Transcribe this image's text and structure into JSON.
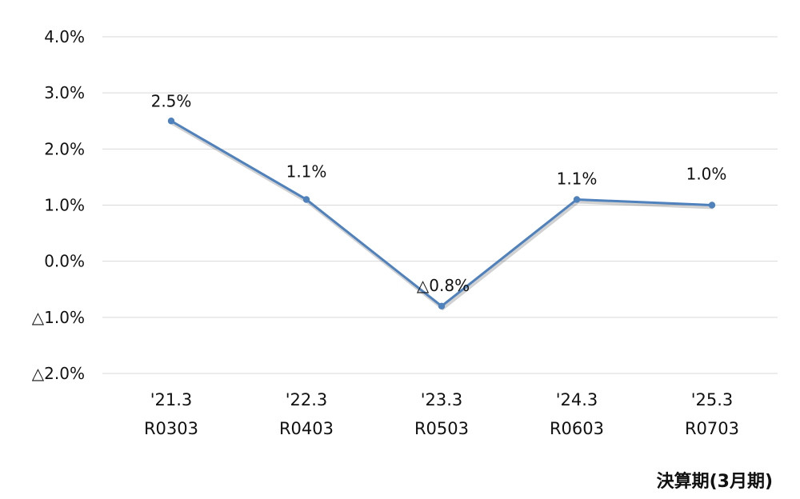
{
  "chart_data": {
    "type": "line",
    "categories": [
      [
        "'21.3",
        "R0303"
      ],
      [
        "'22.3",
        "R0403"
      ],
      [
        "'23.3",
        "R0503"
      ],
      [
        "'24.3",
        "R0603"
      ],
      [
        "'25.3",
        "R0703"
      ]
    ],
    "series": [
      {
        "values": [
          2.5,
          1.1,
          -0.8,
          1.1,
          1.0
        ],
        "data_labels": [
          "2.5%",
          "1.1%",
          "△0.8%",
          "1.1%",
          "1.0%"
        ],
        "color": "#4f81bd"
      }
    ],
    "yticks": [
      4.0,
      3.0,
      2.0,
      1.0,
      0.0,
      -1.0,
      -2.0
    ],
    "ytick_labels": [
      "4.0%",
      "3.0%",
      "2.0%",
      "1.0%",
      "0.0%",
      "△1.0%",
      "△2.0%"
    ],
    "ylim": [
      -2.0,
      4.0
    ],
    "grid": true,
    "xlabel": "決算期(3月期)",
    "ylabel": "",
    "title": ""
  }
}
